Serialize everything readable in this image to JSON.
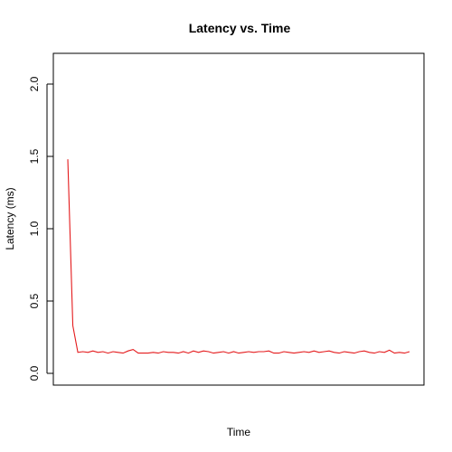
{
  "chart_data": {
    "type": "line",
    "title": "Latency vs. Time",
    "xlabel": "Time",
    "ylabel": "Latency (ms)",
    "xlim": [
      1,
      69
    ],
    "ylim": [
      0.0,
      2.2
    ],
    "yticks": [
      0.0,
      0.5,
      1.0,
      1.5,
      2.0
    ],
    "ytick_labels": [
      "0.0",
      "0.5",
      "1.0",
      "1.5",
      "2.0"
    ],
    "grid": false,
    "legend": "none",
    "series": [
      {
        "color": "#e41a1c",
        "x": [
          1,
          2,
          3,
          4,
          5,
          6,
          7,
          8,
          9,
          10,
          11,
          12,
          13,
          14,
          15,
          16,
          17,
          18,
          19,
          20,
          21,
          22,
          23,
          24,
          25,
          26,
          27,
          28,
          29,
          30,
          31,
          32,
          33,
          34,
          35,
          36,
          37,
          38,
          39,
          40,
          41,
          42,
          43,
          44,
          45,
          46,
          47,
          48,
          49,
          50,
          51,
          52,
          53,
          54,
          55,
          56,
          57,
          58,
          59,
          60,
          61,
          62,
          63,
          64,
          65,
          66,
          67,
          68,
          69
        ],
        "values": [
          1.48,
          0.33,
          0.145,
          0.15,
          0.145,
          0.155,
          0.145,
          0.15,
          0.14,
          0.15,
          0.145,
          0.14,
          0.155,
          0.165,
          0.14,
          0.14,
          0.14,
          0.145,
          0.14,
          0.15,
          0.145,
          0.145,
          0.14,
          0.15,
          0.14,
          0.155,
          0.145,
          0.155,
          0.15,
          0.14,
          0.145,
          0.15,
          0.14,
          0.15,
          0.14,
          0.145,
          0.15,
          0.145,
          0.15,
          0.15,
          0.155,
          0.14,
          0.14,
          0.15,
          0.145,
          0.14,
          0.145,
          0.15,
          0.145,
          0.155,
          0.145,
          0.15,
          0.155,
          0.145,
          0.14,
          0.15,
          0.145,
          0.14,
          0.15,
          0.155,
          0.145,
          0.14,
          0.15,
          0.145,
          0.16,
          0.14,
          0.145,
          0.14,
          0.15
        ]
      }
    ]
  }
}
